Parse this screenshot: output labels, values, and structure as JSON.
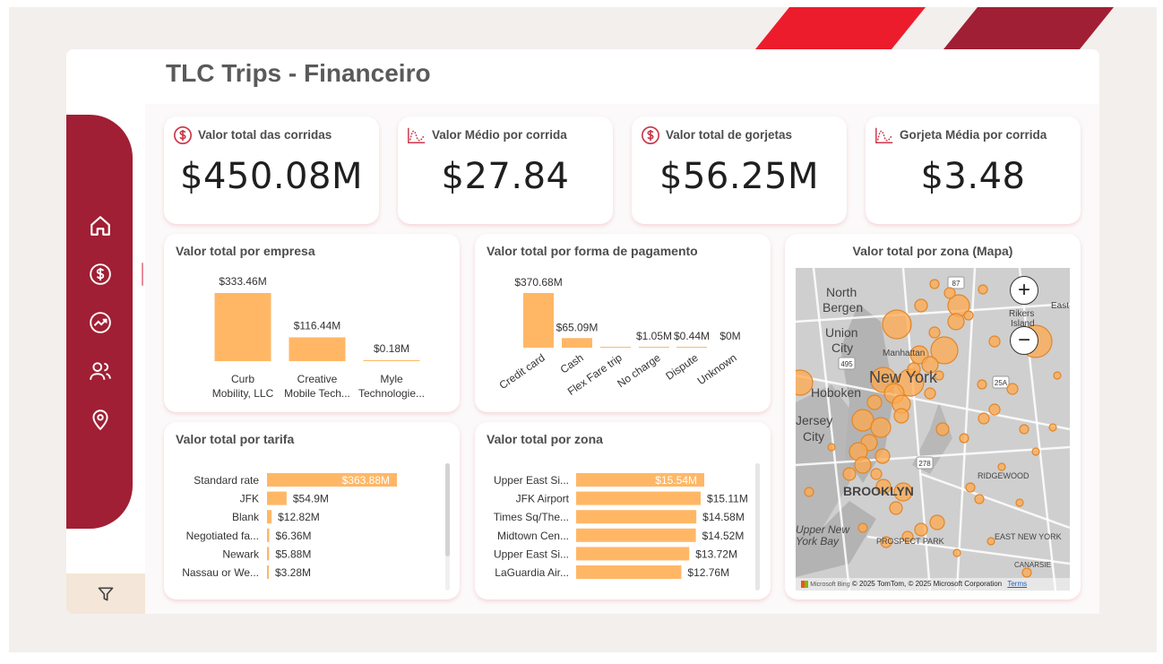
{
  "page": {
    "title": "TLC Trips - Financeiro"
  },
  "sidebar": {
    "items": [
      {
        "name": "home-icon"
      },
      {
        "name": "dollar-icon"
      },
      {
        "name": "trend-icon"
      },
      {
        "name": "users-icon"
      },
      {
        "name": "location-icon"
      }
    ],
    "filter_icon": "filter-icon"
  },
  "kpis": [
    {
      "label": "Valor total das corridas",
      "value": "$450.08M",
      "icon": "dollar-icon"
    },
    {
      "label": "Valor Médio por corrida",
      "value": "$27.84",
      "icon": "curve-icon"
    },
    {
      "label": "Valor total de gorjetas",
      "value": "$56.25M",
      "icon": "dollar-icon"
    },
    {
      "label": "Gorjeta Média por corrida",
      "value": "$3.48",
      "icon": "curve-icon"
    }
  ],
  "colors": {
    "bar": "#ffb766",
    "accent": "#a01f34",
    "stripe": "#ec1c2d"
  },
  "charts": {
    "empresa": {
      "title": "Valor total por empresa",
      "chart_data": {
        "type": "bar",
        "categories": [
          [
            "Curb",
            "Mobility, LLC"
          ],
          [
            "Creative",
            "Mobile Tech..."
          ],
          [
            "Myle",
            "Technologie..."
          ]
        ],
        "values": [
          333.46,
          116.44,
          0.18
        ],
        "labels": [
          "$333.46M",
          "$116.44M",
          "$0.18M"
        ]
      }
    },
    "pagamento": {
      "title": "Valor total por forma de pagamento",
      "chart_data": {
        "type": "bar",
        "categories": [
          "Credit card",
          "Cash",
          "Flex Fare trip",
          "No charge",
          "Dispute",
          "Unknown"
        ],
        "values": [
          370.68,
          65.09,
          1.0,
          1.05,
          0.44,
          0
        ],
        "labels": [
          "$370.68M",
          "$65.09M",
          "",
          "$1.05M",
          "$0.44M",
          "$0M"
        ]
      }
    },
    "tarifa": {
      "title": "Valor total por tarifa",
      "chart_data": {
        "type": "bar",
        "categories": [
          "Standard rate",
          "JFK",
          "Blank",
          "Negotiated fa...",
          "Newark",
          "Nassau or We..."
        ],
        "values": [
          363.88,
          54.9,
          12.82,
          6.36,
          5.88,
          3.28
        ],
        "labels": [
          "$363.88M",
          "$54.9M",
          "$12.82M",
          "$6.36M",
          "$5.88M",
          "$3.28M"
        ]
      }
    },
    "zona": {
      "title": "Valor total por zona",
      "chart_data": {
        "type": "bar",
        "categories": [
          "Upper East Si...",
          "JFK Airport",
          "Times Sq/The...",
          "Midtown Cen...",
          "Upper East Si...",
          "LaGuardia Air..."
        ],
        "values": [
          15.54,
          15.11,
          14.58,
          14.52,
          13.72,
          12.76
        ],
        "labels": [
          "$15.54M",
          "$15.11M",
          "$14.58M",
          "$14.52M",
          "$13.72M",
          "$12.76M"
        ]
      }
    },
    "mapa": {
      "title": "Valor total por zona (Mapa)",
      "labels": [
        "North",
        "Bergen",
        "Union",
        "City",
        "Hoboken",
        "Jersey",
        "City",
        "Manhattan",
        "New York",
        "BROOKLYN",
        "Upper New",
        "York Bay",
        "PROSPECT PARK",
        "EAST NEW YORK",
        "RIDGEWOOD",
        "Rikers",
        "Island",
        "East",
        "CANARSIE"
      ],
      "copyright": "© 2025 TomTom, © 2025 Microsoft Corporation",
      "terms": "Terms",
      "provider": "Microsoft Bing",
      "highway_labels": [
        "495",
        "278",
        "25A",
        "87"
      ]
    }
  }
}
